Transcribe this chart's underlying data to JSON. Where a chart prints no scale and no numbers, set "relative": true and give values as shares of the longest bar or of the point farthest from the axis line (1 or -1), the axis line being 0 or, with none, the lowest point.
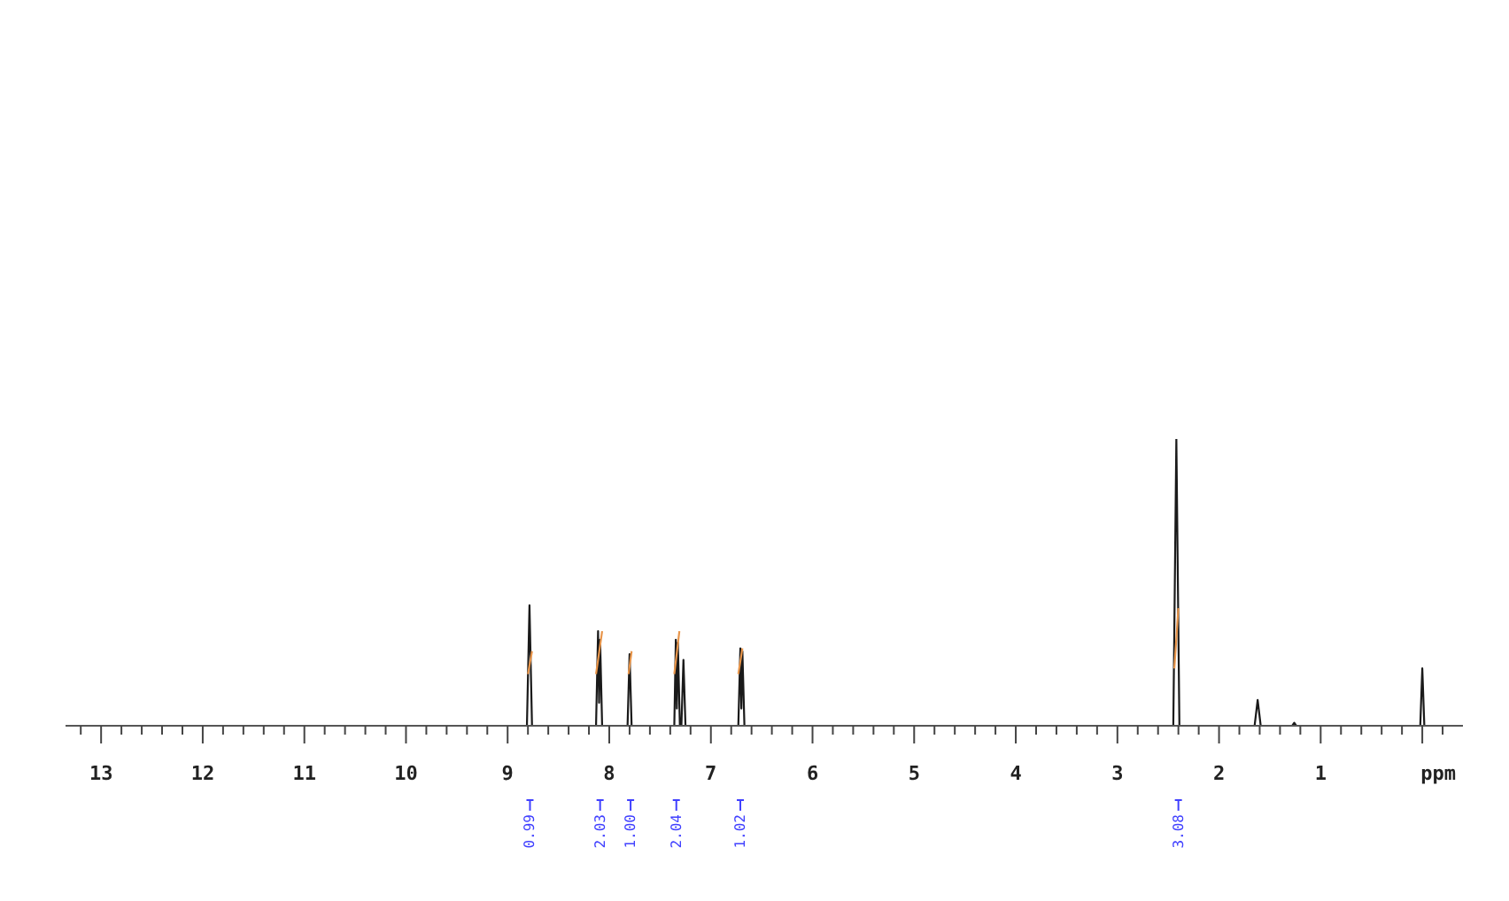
{
  "chart_data": {
    "type": "line",
    "xlabel": "ppm",
    "relative": true,
    "xlim": [
      13.35,
      -0.4
    ],
    "xticks": [
      {
        "value": 13.2,
        "label": null
      },
      13,
      {
        "value": 12.8,
        "label": null
      },
      {
        "value": 12.6,
        "label": null
      },
      {
        "value": 12.4,
        "label": null
      },
      {
        "value": 12.2,
        "label": null
      },
      12,
      {
        "value": 11.8,
        "label": null
      },
      {
        "value": 11.6,
        "label": null
      },
      {
        "value": 11.4,
        "label": null
      },
      {
        "value": 11.2,
        "label": null
      },
      11,
      {
        "value": 10.8,
        "label": null
      },
      {
        "value": 10.6,
        "label": null
      },
      {
        "value": 10.4,
        "label": null
      },
      {
        "value": 10.2,
        "label": null
      },
      10,
      {
        "value": 9.8,
        "label": null
      },
      {
        "value": 9.6,
        "label": null
      },
      {
        "value": 9.4,
        "label": null
      },
      {
        "value": 9.2,
        "label": null
      },
      9,
      {
        "value": 8.8,
        "label": null
      },
      {
        "value": 8.6,
        "label": null
      },
      {
        "value": 8.4,
        "label": null
      },
      {
        "value": 8.2,
        "label": null
      },
      8,
      {
        "value": 7.8,
        "label": null
      },
      {
        "value": 7.6,
        "label": null
      },
      {
        "value": 7.4,
        "label": null
      },
      {
        "value": 7.2,
        "label": null
      },
      7,
      {
        "value": 6.8,
        "label": null
      },
      {
        "value": 6.6,
        "label": null
      },
      {
        "value": 6.4,
        "label": null
      },
      {
        "value": 6.2,
        "label": null
      },
      6,
      {
        "value": 5.8,
        "label": null
      },
      {
        "value": 5.6,
        "label": null
      },
      {
        "value": 5.4,
        "label": null
      },
      {
        "value": 5.2,
        "label": null
      },
      5,
      {
        "value": 4.8,
        "label": null
      },
      {
        "value": 4.6,
        "label": null
      },
      {
        "value": 4.4,
        "label": null
      },
      {
        "value": 4.2,
        "label": null
      },
      4,
      {
        "value": 3.8,
        "label": null
      },
      {
        "value": 3.6,
        "label": null
      },
      {
        "value": 3.4,
        "label": null
      },
      {
        "value": 3.2,
        "label": null
      },
      3,
      {
        "value": 2.8,
        "label": null
      },
      {
        "value": 2.6,
        "label": null
      },
      {
        "value": 2.4,
        "label": null
      },
      {
        "value": 2.2,
        "label": null
      },
      2,
      {
        "value": 1.8,
        "label": null
      },
      {
        "value": 1.6,
        "label": null
      },
      {
        "value": 1.4,
        "label": null
      },
      {
        "value": 1.2,
        "label": null
      },
      1,
      {
        "value": 0.8,
        "label": null
      },
      {
        "value": 0.6,
        "label": null
      },
      {
        "value": 0.4,
        "label": null
      },
      {
        "value": 0.2,
        "label": null
      },
      {
        "value": 0,
        "label": null
      },
      {
        "value": -0.2,
        "label": null
      }
    ],
    "series": [
      {
        "color": "#1a1a1a",
        "x": [
          13.35,
          8.81,
          8.785,
          8.76,
          8.13,
          8.11,
          8.1,
          8.09,
          8.07,
          7.82,
          7.8,
          7.78,
          7.36,
          7.345,
          7.335,
          7.325,
          7.305,
          7.29,
          7.27,
          7.25,
          6.73,
          6.71,
          6.7,
          6.69,
          6.67,
          2.45,
          2.42,
          2.39,
          1.65,
          1.62,
          1.59,
          1.28,
          1.26,
          1.24,
          0.02,
          0,
          -0.02,
          -0.4
        ],
        "values": [
          0,
          0,
          0.42,
          0,
          0,
          0.33,
          0.08,
          0.3,
          0,
          0,
          0.25,
          0,
          0,
          0.3,
          0.06,
          0.29,
          0,
          0,
          0.23,
          0,
          0,
          0.27,
          0.06,
          0.26,
          0,
          0,
          1,
          0,
          0,
          0.09,
          0,
          0,
          0.01,
          0,
          0,
          0.2,
          0,
          0
        ]
      },
      {
        "color": "#e8954a",
        "x": [
          8.8,
          8.76,
          8.5,
          8.13,
          8.07,
          7.9,
          7.81,
          7.78,
          7.5,
          7.36,
          7.31,
          7.0,
          6.73,
          6.69,
          4.0,
          2.44,
          2.4
        ],
        "values": [
          0.18,
          0.26,
          null,
          0.18,
          0.33,
          null,
          0.18,
          0.26,
          null,
          0.18,
          0.33,
          null,
          0.18,
          0.27,
          null,
          0.2,
          0.41
        ]
      }
    ],
    "annotations": [
      {
        "text": "0.99",
        "x": 8.78
      },
      {
        "text": "2.03",
        "x": 8.09
      },
      {
        "text": "1.00",
        "x": 7.79
      },
      {
        "text": "2.04",
        "x": 7.34
      },
      {
        "text": "1.02",
        "x": 6.71
      },
      {
        "text": "3.08",
        "x": 2.4
      }
    ]
  }
}
